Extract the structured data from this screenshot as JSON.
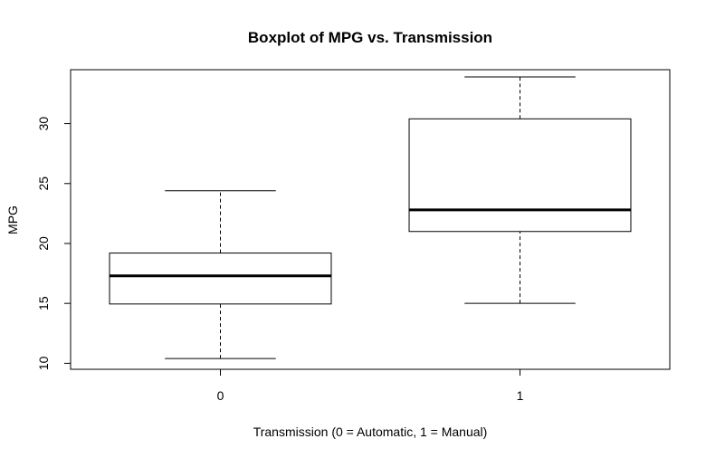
{
  "chart_data": {
    "type": "boxplot",
    "title": "Boxplot of MPG vs. Transmission",
    "xlabel": "Transmission (0 = Automatic, 1 = Manual)",
    "ylabel": "MPG",
    "categories": [
      "0",
      "1"
    ],
    "boxes": [
      {
        "category": "0",
        "min": 10.4,
        "q1": 14.95,
        "median": 17.3,
        "q3": 19.2,
        "max": 24.4
      },
      {
        "category": "1",
        "min": 15.0,
        "q1": 21.0,
        "median": 22.8,
        "q3": 30.4,
        "max": 33.9
      }
    ],
    "yticks": [
      10,
      15,
      20,
      25,
      30
    ],
    "ylim": [
      9.5,
      34.5
    ],
    "grid": false,
    "colors": {
      "box_fill": "#ffffff",
      "line": "#000000",
      "background": "#ffffff"
    }
  }
}
